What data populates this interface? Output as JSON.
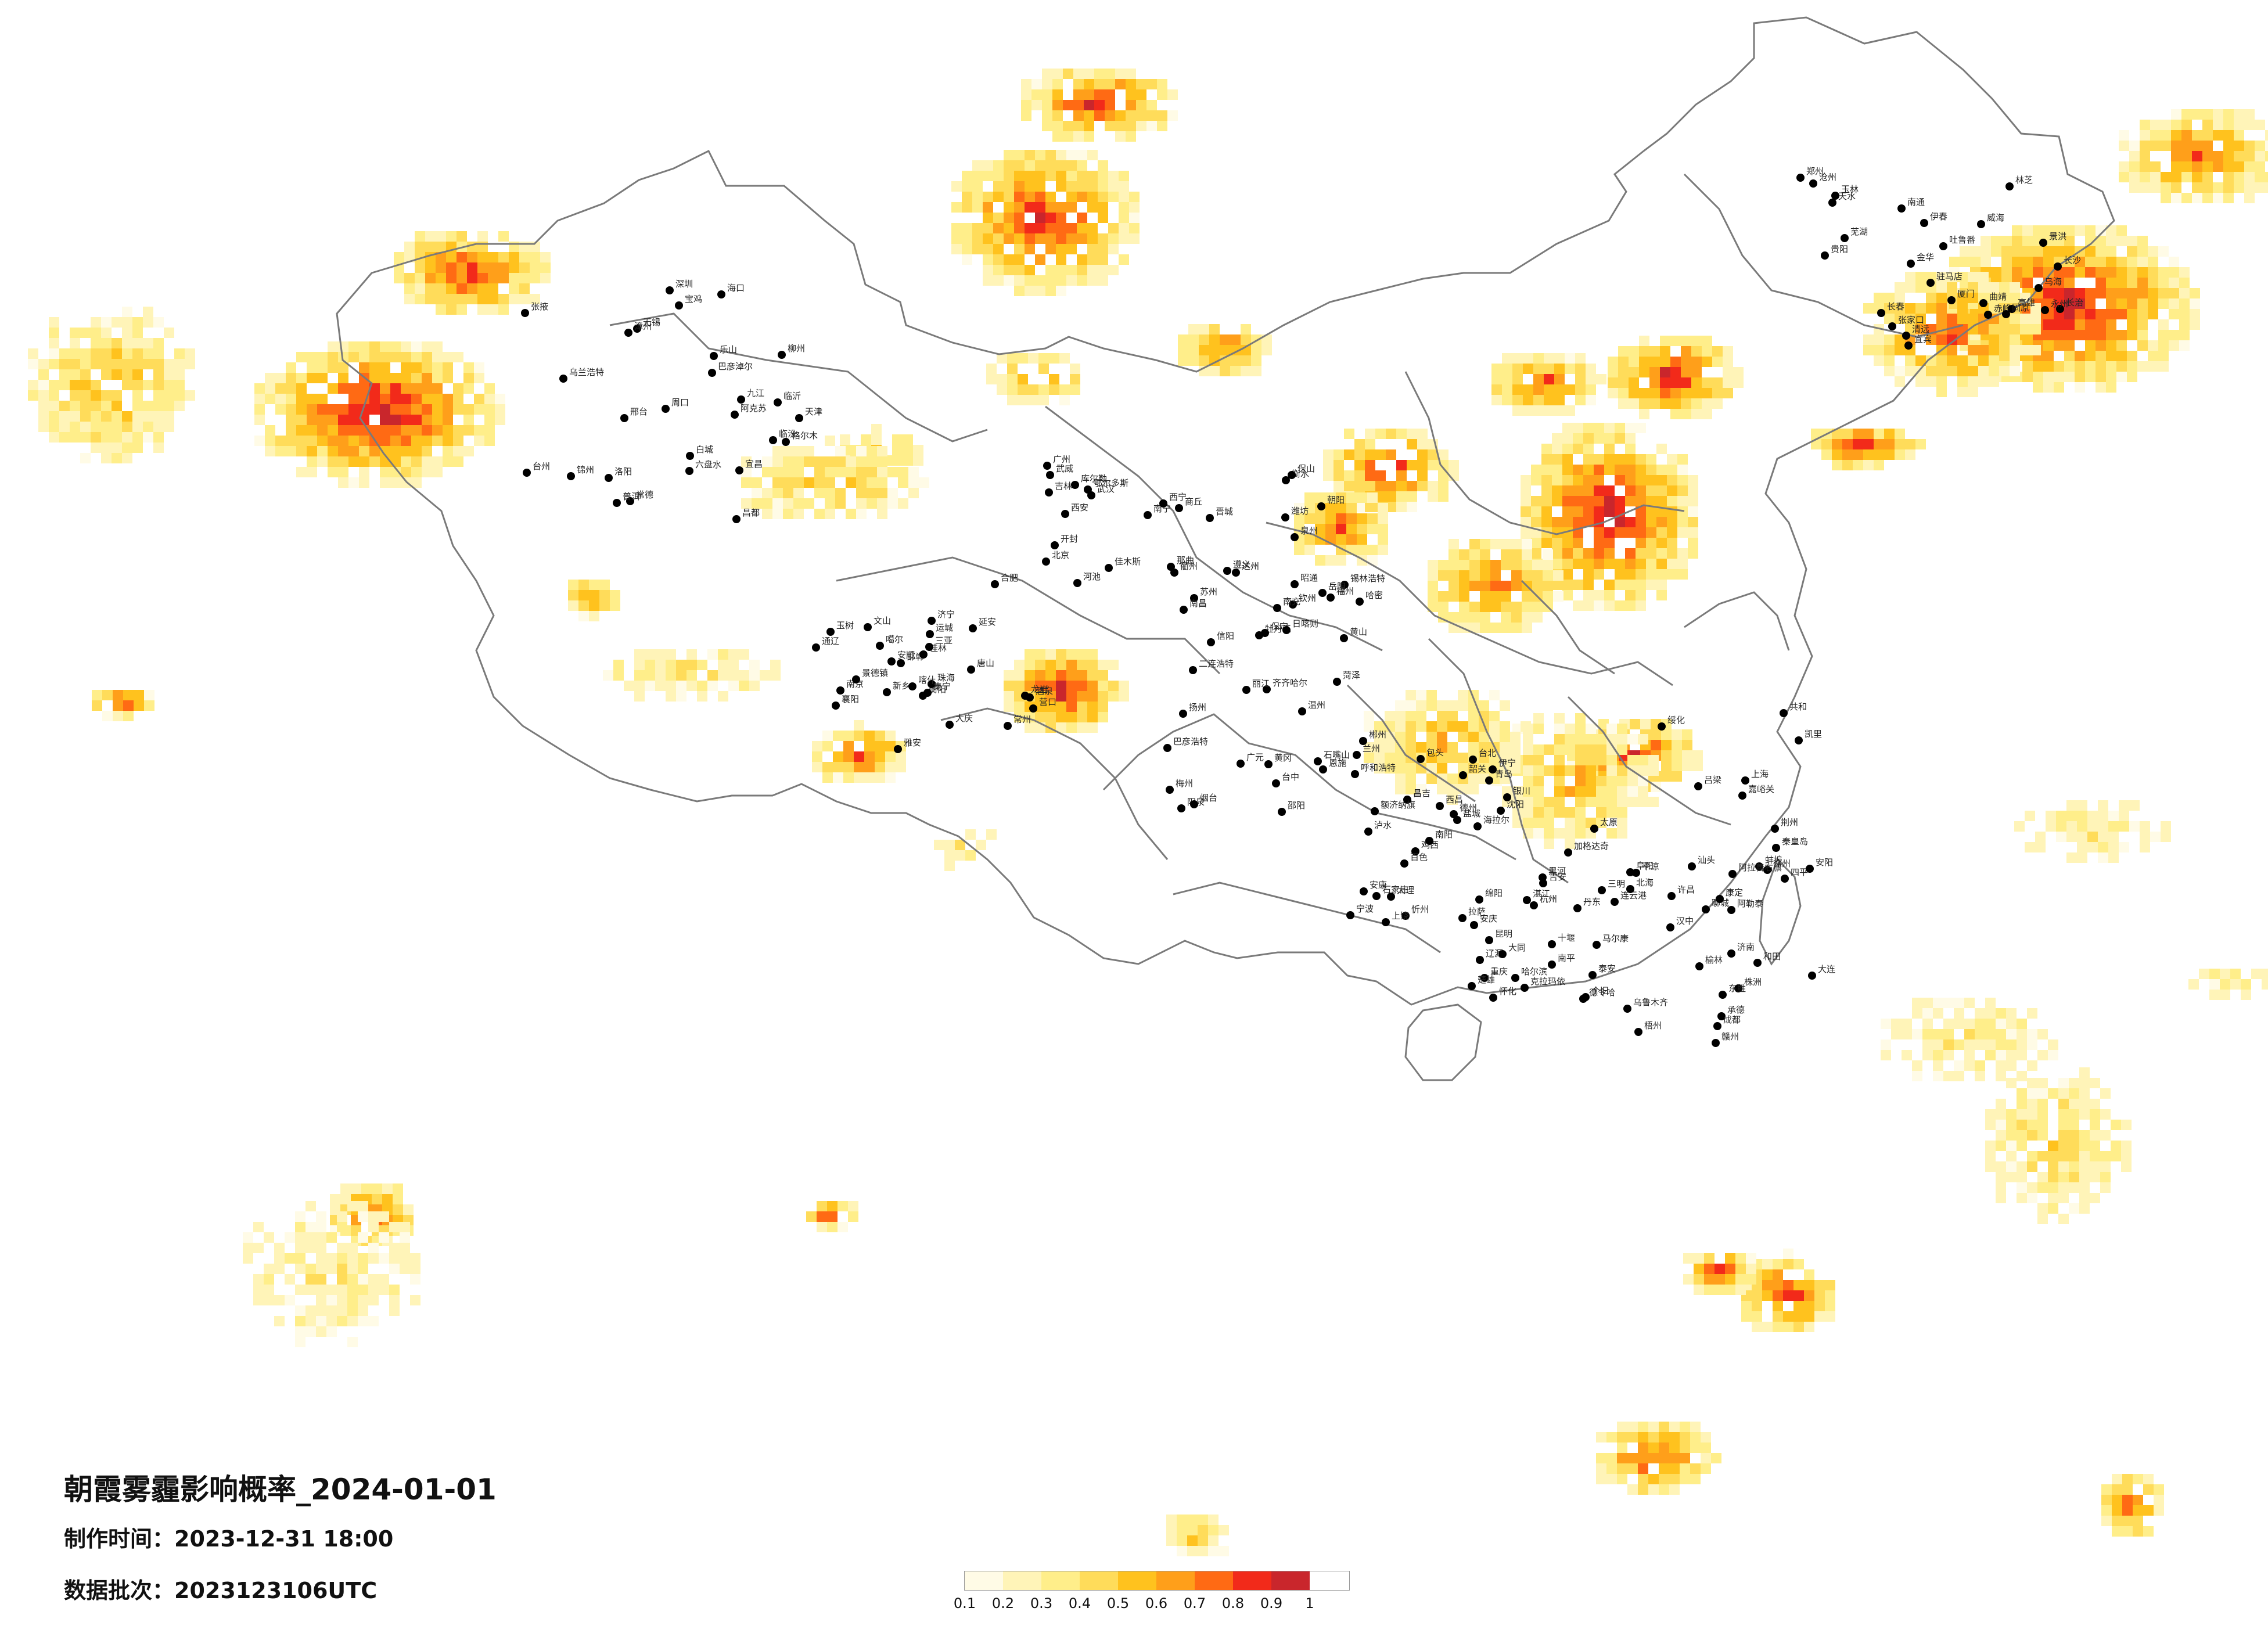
{
  "title": "朝霞雾霾影响概率_2024-01-01",
  "production_time_label": "制作时间：",
  "production_time": "2023-12-31 18:00",
  "batch_label": "数据批次：",
  "batch": "2023123106UTC",
  "legend": {
    "ticks": [
      "0.1",
      "0.2",
      "0.3",
      "0.4",
      "0.5",
      "0.6",
      "0.7",
      "0.8",
      "0.9",
      "1"
    ],
    "colors": [
      "#fffbe6",
      "#fff4b8",
      "#ffee8a",
      "#ffdc5a",
      "#ffc21e",
      "#ff9f1a",
      "#ff6a14",
      "#f22a1a",
      "#c9262c"
    ]
  },
  "cities": [
    "加格达奇",
    "黑河",
    "海拉尔",
    "齐齐哈尔",
    "伊春",
    "佳木斯",
    "乌兰浩特",
    "大庆",
    "绥化",
    "哈尔滨",
    "鸡西",
    "牡丹江",
    "长春",
    "吉林",
    "白城",
    "通辽",
    "四平",
    "辽源",
    "沈阳",
    "锡林浩特",
    "赤峰",
    "朝阳",
    "锦州",
    "营口",
    "大连",
    "丹东",
    "包头",
    "呼和浩特",
    "张家口",
    "北京",
    "天津",
    "唐山",
    "秦皇岛",
    "承德",
    "石家庄",
    "保定",
    "沧州",
    "衡水",
    "邢台",
    "邯郸",
    "太原",
    "大同",
    "忻州",
    "阳泉",
    "长治",
    "晋城",
    "临汾",
    "运城",
    "吕梁",
    "济南",
    "青岛",
    "烟台",
    "威海",
    "潍坊",
    "临沂",
    "济宁",
    "泰安",
    "聊城",
    "德州",
    "菏泽",
    "郑州",
    "开封",
    "洛阳",
    "新乡",
    "安阳",
    "许昌",
    "南阳",
    "信阳",
    "驻马店",
    "商丘",
    "周口",
    "南京",
    "徐州",
    "连云港",
    "盐城",
    "扬州",
    "南通",
    "苏州",
    "无锡",
    "常州",
    "上海",
    "杭州",
    "宁波",
    "温州",
    "金华",
    "衢州",
    "台州",
    "合肥",
    "蚌埠",
    "阜阳",
    "安庆",
    "黄山",
    "芜湖",
    "南昌",
    "九江",
    "景德镇",
    "赣州",
    "吉安",
    "上饶",
    "福州",
    "厦门",
    "泉州",
    "漳州",
    "龙岩",
    "三明",
    "南平",
    "台北",
    "台中",
    "高雄",
    "武汉",
    "宜昌",
    "襄阳",
    "荆州",
    "十堰",
    "恩施",
    "黄冈",
    "长沙",
    "岳阳",
    "常德",
    "衡阳",
    "株洲",
    "怀化",
    "邵阳",
    "郴州",
    "永州",
    "广州",
    "深圳",
    "珠海",
    "汕头",
    "湛江",
    "韶关",
    "梅州",
    "清远",
    "南宁",
    "柳州",
    "桂林",
    "梧州",
    "北海",
    "百色",
    "钦州",
    "玉林",
    "河池",
    "海口",
    "三亚",
    "成都",
    "重庆",
    "绵阳",
    "南充",
    "宜宾",
    "达州",
    "乐山",
    "雅安",
    "康定",
    "马尔康",
    "西昌",
    "广元",
    "贵阳",
    "遵义",
    "六盘水",
    "安顺",
    "凯里",
    "昆明",
    "大理",
    "丽江",
    "曲靖",
    "保山",
    "普洱",
    "文山",
    "个旧",
    "楚雄",
    "泸水",
    "昭通",
    "景洪",
    "西安",
    "宝鸡",
    "延安",
    "汉中",
    "榆林",
    "安康",
    "兰州",
    "天水",
    "武威",
    "张掖",
    "酒泉",
    "嘉峪关",
    "平凉",
    "银川",
    "石嘴山",
    "固原",
    "西宁",
    "格尔木",
    "玉树",
    "共和",
    "德令哈",
    "拉萨",
    "日喀则",
    "林芝",
    "那曲",
    "昌都",
    "噶尔",
    "乌鲁木齐",
    "克拉玛依",
    "伊宁",
    "哈密",
    "吐鲁番",
    "库尔勒",
    "阿克苏",
    "喀什",
    "和田",
    "阿勒泰",
    "昌吉",
    "巴彦浩特",
    "乌海",
    "鄂尔多斯",
    "巴彦淖尔",
    "集宁",
    "东胜",
    "阿拉善右旗",
    "额济纳旗",
    "二连浩特"
  ]
}
